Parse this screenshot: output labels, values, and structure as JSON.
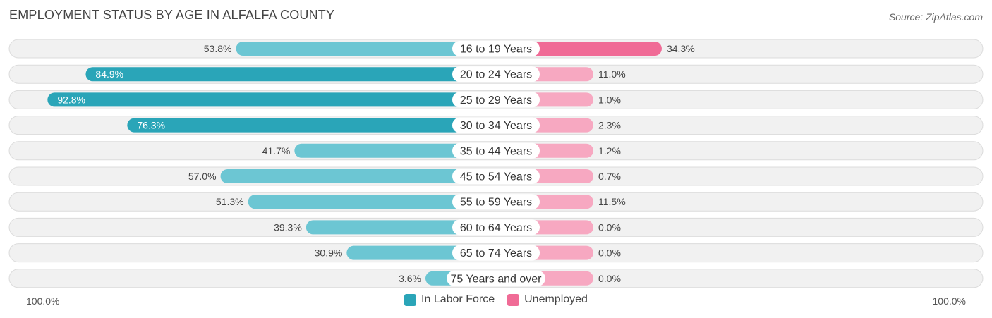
{
  "title": "EMPLOYMENT STATUS BY AGE IN ALFALFA COUNTY",
  "source": "Source: ZipAtlas.com",
  "colors": {
    "labor_strong": "#2aa5b8",
    "labor_light": "#6cc6d3",
    "unemp_strong": "#f06b96",
    "unemp_light": "#f7a8c1",
    "row_bg": "#f1f1f1",
    "row_border": "#dcdcdc"
  },
  "axis": {
    "left_label": "100.0%",
    "right_label": "100.0%"
  },
  "legend": {
    "labor": "In Labor Force",
    "unemployed": "Unemployed"
  },
  "chart_data": {
    "type": "bar",
    "orientation": "horizontal-diverging",
    "title": "EMPLOYMENT STATUS BY AGE IN ALFALFA COUNTY",
    "categories": [
      "16 to 19 Years",
      "20 to 24 Years",
      "25 to 29 Years",
      "30 to 34 Years",
      "35 to 44 Years",
      "45 to 54 Years",
      "55 to 59 Years",
      "60 to 64 Years",
      "65 to 74 Years",
      "75 Years and over"
    ],
    "series": [
      {
        "name": "In Labor Force",
        "values": [
          53.8,
          84.9,
          92.8,
          76.3,
          41.7,
          57.0,
          51.3,
          39.3,
          30.9,
          3.6
        ],
        "labels": [
          "53.8%",
          "84.9%",
          "92.8%",
          "76.3%",
          "41.7%",
          "57.0%",
          "51.3%",
          "39.3%",
          "30.9%",
          "3.6%"
        ]
      },
      {
        "name": "Unemployed",
        "values": [
          34.3,
          11.0,
          1.0,
          2.3,
          1.2,
          0.7,
          11.5,
          0.0,
          0.0,
          0.0
        ],
        "labels": [
          "34.3%",
          "11.0%",
          "1.0%",
          "2.3%",
          "1.2%",
          "0.7%",
          "11.5%",
          "0.0%",
          "0.0%",
          "0.0%"
        ]
      }
    ],
    "xlim": [
      -100,
      100
    ],
    "legend_position": "bottom-center"
  }
}
